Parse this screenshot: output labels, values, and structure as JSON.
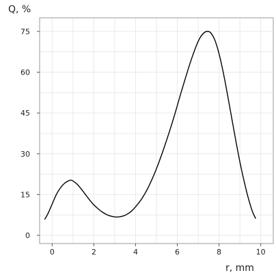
{
  "chart_data": {
    "type": "line",
    "title": "",
    "xlabel": "r, mm",
    "ylabel": "Q, %",
    "xlim": [
      -0.6,
      10.6
    ],
    "ylim": [
      -3,
      80
    ],
    "xticks": [
      0,
      2,
      4,
      6,
      8,
      10
    ],
    "xtick_labels": [
      "0",
      "2",
      "4",
      "6",
      "8",
      "10"
    ],
    "yticks": [
      0,
      15,
      30,
      45,
      60,
      75
    ],
    "ytick_labels": [
      "0",
      "15",
      "30",
      "45",
      "60",
      "75"
    ],
    "grid": true,
    "legend": "none",
    "series": [
      {
        "color": "#000000",
        "x": [
          -0.35,
          -0.2,
          0,
          0.2,
          0.4,
          0.6,
          0.8,
          0.9,
          1.0,
          1.2,
          1.4,
          1.6,
          1.8,
          2.0,
          2.2,
          2.4,
          2.6,
          2.8,
          3.0,
          3.2,
          3.4,
          3.6,
          3.8,
          4.0,
          4.3,
          4.6,
          5.0,
          5.4,
          5.8,
          6.2,
          6.6,
          6.9,
          7.1,
          7.3,
          7.45,
          7.6,
          7.8,
          8.0,
          8.2,
          8.4,
          8.6,
          8.8,
          9.0,
          9.2,
          9.4,
          9.6,
          9.75
        ],
        "y": [
          6,
          8,
          11.5,
          15,
          17.5,
          19.2,
          20.1,
          20.3,
          20,
          18.8,
          17,
          15,
          13,
          11.2,
          9.8,
          8.6,
          7.7,
          7.1,
          6.8,
          6.8,
          7.1,
          7.8,
          8.9,
          10.5,
          13.5,
          17.5,
          24.5,
          33,
          42.5,
          53,
          63,
          69.5,
          72.8,
          74.6,
          75,
          74.5,
          71.8,
          66.8,
          60,
          52,
          43.5,
          35,
          27,
          20,
          13.8,
          8.8,
          6.3
        ]
      }
    ]
  }
}
